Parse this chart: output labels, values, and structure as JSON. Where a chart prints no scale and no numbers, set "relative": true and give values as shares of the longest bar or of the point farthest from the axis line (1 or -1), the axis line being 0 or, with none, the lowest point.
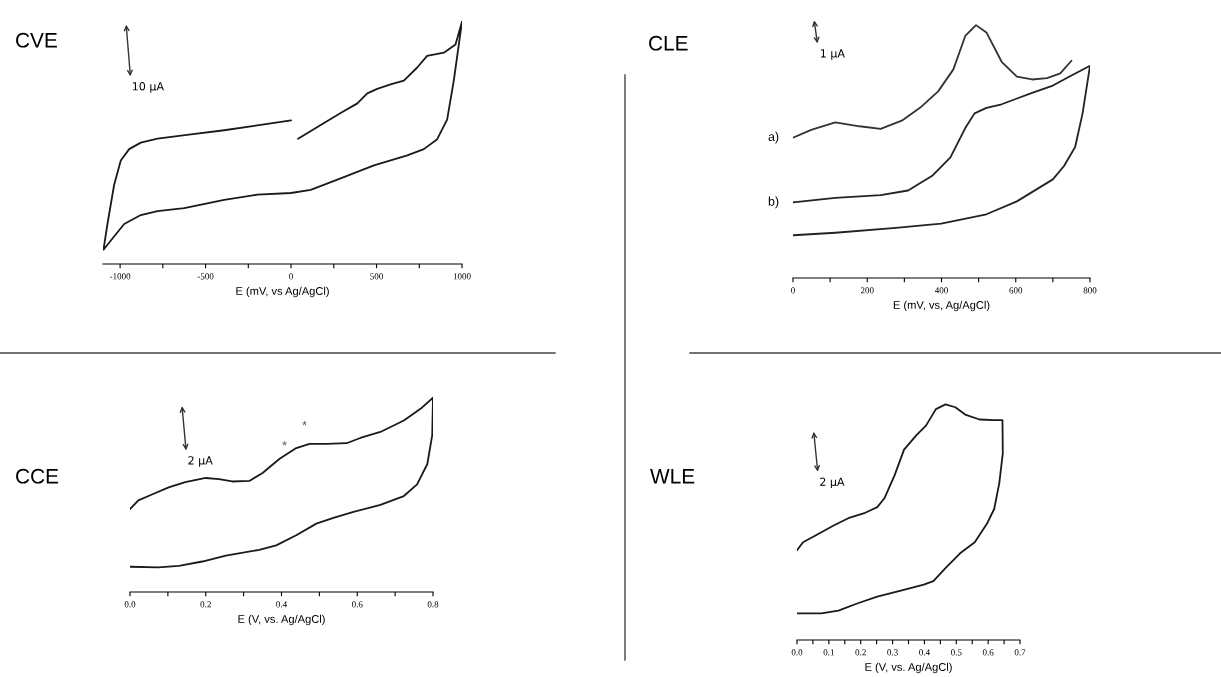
{
  "chart_data": [
    {
      "type": "line",
      "title": "CVE",
      "xlabel": "E (mV, vs Ag/AgCl)",
      "relative": true,
      "xlim": [
        -1100,
        1000
      ],
      "xticks": [
        -1000,
        {
          "value": -750,
          "label": null
        },
        -500,
        {
          "value": -250,
          "label": null
        },
        0,
        {
          "value": 250,
          "label": null
        },
        500,
        {
          "value": 750,
          "label": null
        },
        1000
      ],
      "annotations": [
        "10 μA"
      ],
      "series": [
        {
          "color": "#1a1a1a",
          "x": [
            0,
            -158,
            -391,
            -586,
            -781,
            -879,
            -947,
            -996,
            -1035,
            -1074,
            -1097,
            -1054,
            -976,
            -879,
            -781,
            -625,
            -391,
            -197,
            0,
            115,
            290,
            485,
            680,
            777,
            855,
            913,
            952,
            1000,
            962,
            894,
            796,
            738,
            660,
            582,
            504,
            446,
            388,
            290,
            193,
            41
          ],
          "values": [
            0.593,
            0.576,
            0.552,
            0.535,
            0.517,
            0.501,
            0.474,
            0.427,
            0.326,
            0.165,
            0.059,
            0.097,
            0.165,
            0.202,
            0.218,
            0.231,
            0.265,
            0.286,
            0.293,
            0.306,
            0.353,
            0.407,
            0.448,
            0.474,
            0.515,
            0.596,
            0.757,
            1,
            0.906,
            0.872,
            0.859,
            0.811,
            0.757,
            0.741,
            0.723,
            0.704,
            0.663,
            0.623,
            0.582,
            0.517
          ]
        }
      ]
    },
    {
      "type": "line",
      "title": "CLE",
      "xlabel": "E (mV, vs, Ag/AgCl)",
      "relative": true,
      "xlim": [
        0,
        800
      ],
      "xticks": [
        0,
        {
          "value": 100,
          "label": null
        },
        200,
        {
          "value": 300,
          "label": null
        },
        400,
        {
          "value": 500,
          "label": null
        },
        600,
        {
          "value": 700,
          "label": null
        },
        800
      ],
      "annotations": [
        "1 μA"
      ],
      "series": [
        {
          "name": "a)",
          "color": "#333333",
          "x": [
            0,
            49,
            114,
            179,
            236,
            293,
            342,
            391,
            432,
            464,
            493,
            521,
            562,
            603,
            644,
            684,
            720,
            750
          ],
          "values": [
            0.555,
            0.586,
            0.615,
            0.6,
            0.59,
            0.622,
            0.673,
            0.738,
            0.825,
            0.957,
            1,
            0.971,
            0.855,
            0.796,
            0.785,
            0.79,
            0.809,
            0.859
          ]
        },
        {
          "name": "b)",
          "color": "#222222",
          "x": [
            0,
            114,
            236,
            310,
            375,
            424,
            464,
            489,
            521,
            562,
            644,
            700,
            750,
            800,
            780,
            760,
            730,
            700,
            603,
            521,
            399,
            277,
            114,
            0
          ],
          "values": [
            0.299,
            0.317,
            0.328,
            0.346,
            0.404,
            0.477,
            0.593,
            0.651,
            0.673,
            0.687,
            0.732,
            0.761,
            0.801,
            0.839,
            0.651,
            0.518,
            0.443,
            0.39,
            0.303,
            0.252,
            0.215,
            0.198,
            0.179,
            0.169
          ]
        }
      ]
    },
    {
      "type": "line",
      "title": "CCE",
      "xlabel": "E (V, vs. Ag/AgCl)",
      "relative": true,
      "xlim": [
        0,
        0.8
      ],
      "xticks": [
        {
          "value": 0,
          "label": "0.0"
        },
        {
          "value": 0.1,
          "label": null
        },
        0.2,
        {
          "value": 0.3,
          "label": null
        },
        0.4,
        {
          "value": 0.5,
          "label": null
        },
        0.6,
        {
          "value": 0.7,
          "label": null
        },
        0.8
      ],
      "annotations": [
        "2 μA",
        "*",
        "*"
      ],
      "series": [
        {
          "color": "#1a1a1a",
          "x": [
            0,
            0.022,
            0.058,
            0.102,
            0.146,
            0.2,
            0.235,
            0.27,
            0.315,
            0.35,
            0.395,
            0.439,
            0.474,
            0.519,
            0.572,
            0.608,
            0.661,
            0.723,
            0.767,
            0.8,
            0.798,
            0.785,
            0.758,
            0.723,
            0.661,
            0.59,
            0.537,
            0.492,
            0.439,
            0.386,
            0.341,
            0.253,
            0.191,
            0.129,
            0.075,
            0
          ],
          "values": [
            0.427,
            0.472,
            0.502,
            0.539,
            0.566,
            0.587,
            0.581,
            0.569,
            0.572,
            0.613,
            0.686,
            0.741,
            0.763,
            0.763,
            0.766,
            0.793,
            0.824,
            0.883,
            0.943,
            1,
            0.808,
            0.659,
            0.554,
            0.494,
            0.449,
            0.412,
            0.382,
            0.352,
            0.292,
            0.24,
            0.217,
            0.187,
            0.157,
            0.135,
            0.127,
            0.13
          ]
        }
      ]
    },
    {
      "type": "line",
      "title": "WLE",
      "xlabel": "E (V, vs. Ag/AgCl)",
      "relative": true,
      "xlim": [
        0,
        0.7
      ],
      "xticks": [
        {
          "value": 0,
          "label": "0.0"
        },
        {
          "value": 0.05,
          "label": null
        },
        0.1,
        {
          "value": 0.15,
          "label": null
        },
        0.2,
        {
          "value": 0.25,
          "label": null
        },
        0.3,
        {
          "value": 0.35,
          "label": null
        },
        0.4,
        {
          "value": 0.45,
          "label": null
        },
        0.5,
        {
          "value": 0.55,
          "label": null
        },
        0.6,
        {
          "value": 0.65,
          "label": null
        },
        0.7
      ],
      "annotations": [
        "2 μA"
      ],
      "series": [
        {
          "color": "#1a1a1a",
          "x": [
            0,
            0.019,
            0.061,
            0.115,
            0.161,
            0.214,
            0.252,
            0.275,
            0.306,
            0.336,
            0.375,
            0.405,
            0.436,
            0.466,
            0.497,
            0.528,
            0.573,
            0.619,
            0.645,
            0.646,
            0.635,
            0.619,
            0.596,
            0.558,
            0.512,
            0.466,
            0.428,
            0.398,
            0.329,
            0.252,
            0.191,
            0.13,
            0.076,
            0
          ],
          "values": [
            0.381,
            0.415,
            0.446,
            0.486,
            0.517,
            0.54,
            0.564,
            0.603,
            0.698,
            0.808,
            0.87,
            0.91,
            0.98,
            1,
            0.988,
            0.957,
            0.936,
            0.933,
            0.933,
            0.792,
            0.666,
            0.556,
            0.493,
            0.415,
            0.368,
            0.305,
            0.25,
            0.235,
            0.211,
            0.184,
            0.156,
            0.125,
            0.113,
            0.113
          ]
        }
      ]
    }
  ]
}
